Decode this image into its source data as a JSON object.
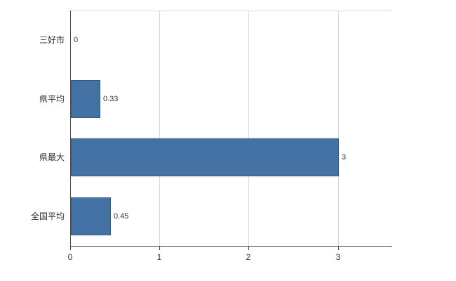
{
  "chart_data": {
    "type": "bar",
    "orientation": "horizontal",
    "title": "",
    "categories": [
      "三好市",
      "県平均",
      "県最大",
      "全国平均"
    ],
    "values": [
      0,
      0.33,
      3,
      0.45
    ],
    "value_labels": [
      "0",
      "0.33",
      "3",
      "0.45"
    ],
    "x_ticks": [
      0,
      1,
      2,
      3
    ],
    "x_tick_labels": [
      "0",
      "1",
      "2",
      "3"
    ],
    "xlim": [
      0,
      3.6
    ],
    "grid": true,
    "legend": "none",
    "colors": {
      "bar_fill": "#4472a4",
      "bar_border": "#2e5984",
      "grid_line": "#d9d9d9",
      "axis_line": "#4d4d4d",
      "text": "#333333",
      "background": "#ffffff"
    }
  }
}
